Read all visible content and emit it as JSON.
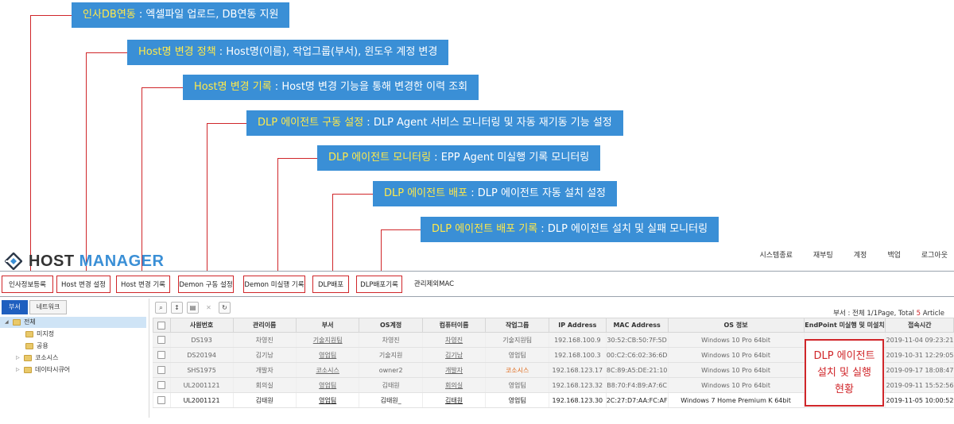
{
  "callouts": [
    {
      "highlight": "인사DB연동",
      "desc": " : 엑셀파일 업로드, DB연동 지원"
    },
    {
      "highlight": "Host명 변경 정책",
      "desc": " : Host명(이름), 작업그룹(부서), 윈도우 계정 변경"
    },
    {
      "highlight": "Host명 변경 기록",
      "desc": " : Host명 변경 기능을 통해 변경한 이력 조회"
    },
    {
      "highlight": "DLP 에이전트 구동 설정",
      "desc": " : DLP Agent 서비스 모니터링 및 자동 재기동 기능 설정"
    },
    {
      "highlight": "DLP 에이전트 모니터링",
      "desc": " : EPP Agent 미실행 기록 모니터링"
    },
    {
      "highlight": "DLP 에이전트 배포",
      "desc": " : DLP 에이전트 자동 설치 설정"
    },
    {
      "highlight": "DLP 에이전트 배포 기록",
      "desc": " : DLP 에이전트 설치 및 실패 모니터링"
    }
  ],
  "logo": {
    "word1": "HOST",
    "word2": "MANAGER"
  },
  "topnav": [
    "시스템종료",
    "재부팅",
    "계정",
    "백업",
    "로그아웃"
  ],
  "menu": [
    "인사정보등록",
    "Host 변경 설정",
    "Host 변경 기록",
    "Demon 구동 설정",
    "Demon 미실행 기록",
    "DLP배포",
    "DLP배포기록",
    "관리제외MAC"
  ],
  "left_tabs": [
    "부서",
    "네트워크"
  ],
  "tree": {
    "root": "전체",
    "children": [
      "미지정",
      "공용",
      "코소시스",
      "데이타시큐어"
    ]
  },
  "toolbar_icons": [
    "search-icon",
    "sort-icon",
    "save-icon",
    "delete-icon",
    "refresh-icon"
  ],
  "summary": {
    "prefix": "부서 : 전체 1/1Page, Total ",
    "count": "5",
    "suffix": " Article"
  },
  "table": {
    "headers": [
      "사원번호",
      "관리이름",
      "부서",
      "OS계정",
      "컴퓨터이름",
      "작업그룹",
      "IP Address",
      "MAC Address",
      "OS 정보",
      "EndPoint 미실행 및 미설치",
      "접속시간"
    ],
    "rows": [
      [
        "DS193",
        "차영진",
        "기술지원팀",
        "차영진",
        "차영진",
        "기술지원팀",
        "192.168.100.9",
        "30:52:CB:50:7F:5D",
        "Windows 10 Pro 64bit",
        "",
        "2019-11-04 09:23:21"
      ],
      [
        "DS20194",
        "김기남",
        "영업팀",
        "기술지원",
        "김기남",
        "영업팀",
        "192.168.100.3",
        "00:C2:C6:02:36:6D",
        "Windows 10 Pro 64bit",
        "",
        "2019-10-31 12:29:05"
      ],
      [
        "SHS1975",
        "개발자",
        "코소시스",
        "owner2",
        "개발자",
        "코소시스",
        "192.168.123.17",
        "8C:89:A5:DE:21:10",
        "Windows 10 Pro 64bit",
        "",
        "2019-09-17 18:08:47"
      ],
      [
        "UL2001121",
        "회의실",
        "영업팀",
        "김태원",
        "회의실",
        "영업팀",
        "192.168.123.32",
        "B8:70:F4:B9:A7:6C",
        "Windows 10 Pro 64bit",
        "",
        "2019-09-11 15:52:56"
      ],
      [
        "UL2001121",
        "김태원",
        "영업팀",
        "김태원_",
        "김태원",
        "영업팀",
        "192.168.123.30",
        "2C:27:D7:AA:FC:AF",
        "Windows 7 Home Premium K 64bit",
        "",
        "2019-11-05 10:00:52"
      ]
    ]
  },
  "dlp_status": {
    "line1": "DLP 에이전트",
    "line2": "설치 및 실행",
    "line3": "현황"
  },
  "colors": {
    "accent": "#3a8fd6",
    "highlight": "#ffe94a",
    "marker": "#d0262a",
    "tab_active": "#1f5fbf"
  }
}
